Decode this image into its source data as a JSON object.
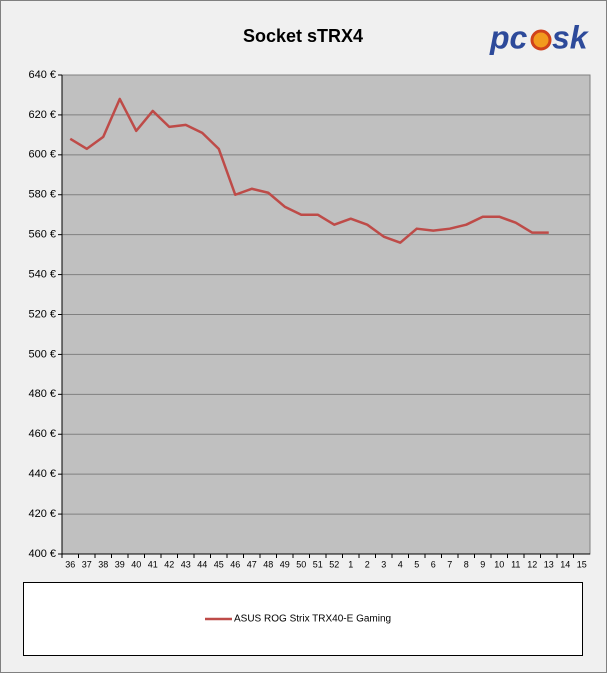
{
  "chart_data": {
    "type": "line",
    "title": "Socket sTRX4",
    "logo": {
      "left": "pc",
      "right": "sk"
    },
    "categories": [
      "36",
      "37",
      "38",
      "39",
      "40",
      "41",
      "42",
      "43",
      "44",
      "45",
      "46",
      "47",
      "48",
      "49",
      "50",
      "51",
      "52",
      "1",
      "2",
      "3",
      "4",
      "5",
      "6",
      "7",
      "8",
      "9",
      "10",
      "11",
      "12",
      "13",
      "14",
      "15"
    ],
    "series": [
      {
        "name": "ASUS ROG Strix TRX40-E Gaming",
        "color": "#be4b48",
        "values": [
          608,
          603,
          609,
          628,
          612,
          622,
          614,
          615,
          611,
          603,
          580,
          583,
          581,
          574,
          570,
          570,
          565,
          568,
          565,
          559,
          556,
          563,
          562,
          563,
          565,
          569,
          569,
          566,
          561,
          561,
          null,
          null
        ]
      }
    ],
    "ylim": [
      400,
      640
    ],
    "yticks": [
      {
        "value": 400,
        "label": "400 €"
      },
      {
        "value": 420,
        "label": "420 €"
      },
      {
        "value": 440,
        "label": "440 €"
      },
      {
        "value": 460,
        "label": "460 €"
      },
      {
        "value": 480,
        "label": "480 €"
      },
      {
        "value": 500,
        "label": "500 €"
      },
      {
        "value": 520,
        "label": "520 €"
      },
      {
        "value": 540,
        "label": "540 €"
      },
      {
        "value": 560,
        "label": "560 €"
      },
      {
        "value": 580,
        "label": "580 €"
      },
      {
        "value": 600,
        "label": "600 €"
      },
      {
        "value": 620,
        "label": "620 €"
      },
      {
        "value": 640,
        "label": "640 €"
      }
    ],
    "grid": true,
    "legend": "bottom"
  }
}
